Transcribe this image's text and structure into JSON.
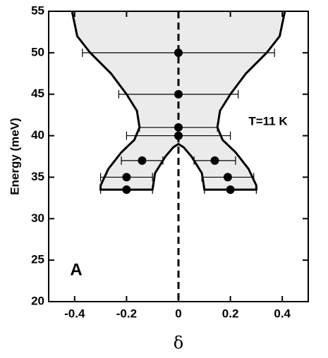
{
  "chart_data": {
    "type": "scatter",
    "xlabel": "δ",
    "ylabel": "Energy (meV)",
    "annotations": [
      "A",
      "T=11 K"
    ],
    "xlim": [
      -0.5,
      0.5
    ],
    "xticks": [
      -0.4,
      -0.2,
      0,
      0.2,
      0.4
    ],
    "ylim": [
      20,
      55
    ],
    "yticks": [
      20,
      25,
      30,
      35,
      40,
      45,
      50,
      55
    ],
    "vline": 0,
    "series": [
      {
        "color": "#000000",
        "x": [
          0,
          0,
          0,
          0,
          -0.14,
          0.14,
          -0.2,
          0.19,
          -0.2,
          0.2
        ],
        "y": [
          50,
          45,
          41,
          40,
          37,
          37,
          35,
          35,
          33.5,
          33.5
        ],
        "xerr": [
          0.37,
          0.23,
          0.15,
          0.2,
          0.08,
          0.08,
          0.1,
          0.1,
          0.1,
          0.1
        ]
      }
    ],
    "region": {
      "color": "#ebebeb",
      "x": [
        0.41,
        0.39,
        0.34,
        0.26,
        0.2,
        0.16,
        0.15,
        0.17,
        0.22,
        0.27,
        0.3,
        0.3,
        0.1,
        0.09,
        0.05,
        0.02,
        0,
        -0.02,
        -0.05,
        -0.09,
        -0.1,
        -0.3,
        -0.3,
        -0.27,
        -0.22,
        -0.17,
        -0.15,
        -0.16,
        -0.2,
        -0.26,
        -0.34,
        -0.39,
        -0.41
      ],
      "y": [
        55,
        52,
        50,
        47.5,
        45,
        43,
        41,
        39.5,
        38,
        36,
        34,
        33.5,
        33.5,
        35.5,
        37.5,
        38.6,
        39,
        38.6,
        37.5,
        35.5,
        33.5,
        33.5,
        34,
        36,
        38,
        39.5,
        41,
        43,
        45,
        47.5,
        50,
        52,
        55
      ]
    }
  }
}
